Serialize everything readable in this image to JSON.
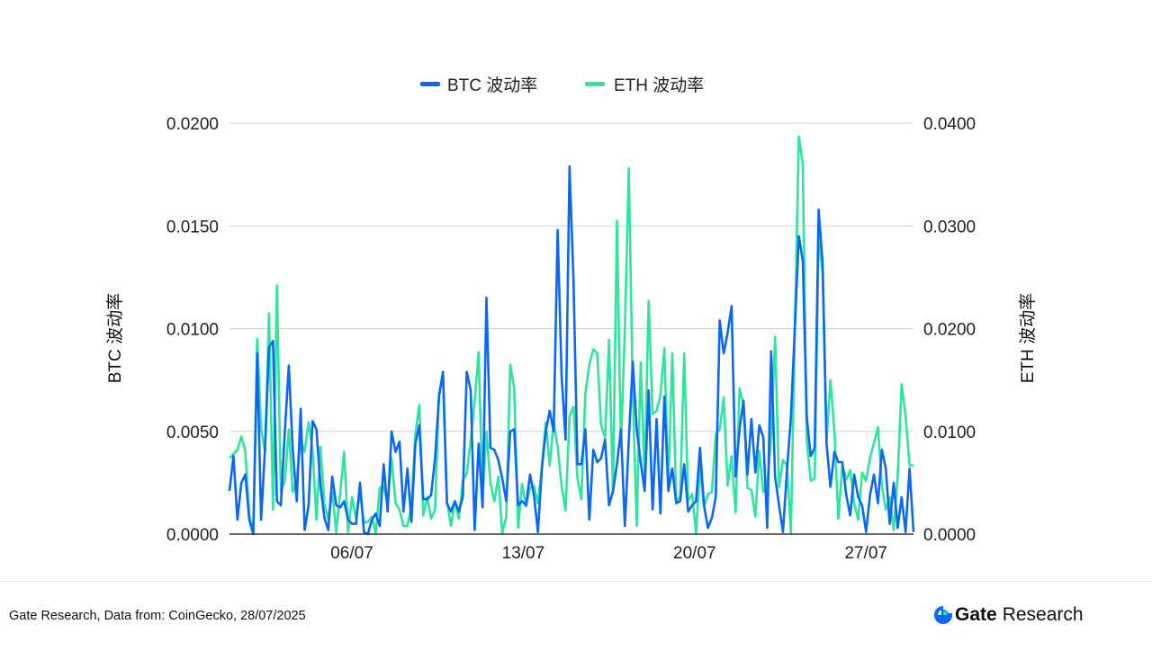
{
  "chart_data": {
    "type": "line",
    "legend": [
      "BTC 波动率",
      "ETH 波动率"
    ],
    "legend_position": "top-center",
    "ylabel_left": "BTC 波动率",
    "ylabel_right": "ETH 波动率",
    "ylim_left": [
      0,
      0.02
    ],
    "ylim_right": [
      0,
      0.04
    ],
    "yticks_left": [
      "0.0000",
      "0.0050",
      "0.0100",
      "0.0150",
      "0.0200"
    ],
    "yticks_right": [
      "0.0000",
      "0.0100",
      "0.0200",
      "0.0300",
      "0.0400"
    ],
    "x_unit": "days since 01/07/2025",
    "xlim": [
      0,
      27.94
    ],
    "xticks": [
      {
        "label": "06/07",
        "day": 5
      },
      {
        "label": "13/07",
        "day": 12
      },
      {
        "label": "20/07",
        "day": 19
      },
      {
        "label": "27/07",
        "day": 26
      }
    ],
    "grid": true,
    "colors": {
      "BTC": "#0a68f5",
      "ETH": "#2ee59d"
    },
    "series": [
      {
        "name": "BTC 波动率",
        "axis": "left",
        "values": [
          0.0021,
          0.0038,
          0.0007,
          0.0025,
          0.0029,
          0.0007,
          0.0,
          0.0088,
          0.0007,
          0.0042,
          0.0091,
          0.0094,
          0.0016,
          0.0014,
          0.005,
          0.0082,
          0.0041,
          0.0016,
          0.0061,
          0.0002,
          0.0014,
          0.0055,
          0.0051,
          0.0024,
          0.0008,
          0.0002,
          0.0028,
          0.0014,
          0.0013,
          0.0016,
          0.0007,
          0.0005,
          0.0005,
          0.0025,
          0.0001,
          0.0,
          0.0007,
          0.001,
          0.0004,
          0.0034,
          0.0011,
          0.005,
          0.004,
          0.0045,
          0.0011,
          0.0032,
          0.0006,
          0.0044,
          0.0053,
          0.0017,
          0.0017,
          0.0019,
          0.0037,
          0.0067,
          0.0079,
          0.0015,
          0.0011,
          0.0016,
          0.0011,
          0.0018,
          0.0079,
          0.007,
          0.0002,
          0.0044,
          0.0013,
          0.0115,
          0.0042,
          0.0041,
          0.0036,
          0.0027,
          0.0016,
          0.005,
          0.0051,
          0.0014,
          0.0016,
          0.0014,
          0.0029,
          0.0019,
          0.0001,
          0.0032,
          0.005,
          0.006,
          0.005,
          0.0148,
          0.0077,
          0.0046,
          0.0179,
          0.0124,
          0.0034,
          0.0034,
          0.0051,
          0.0007,
          0.0041,
          0.0035,
          0.0037,
          0.0046,
          0.0014,
          0.0021,
          0.0034,
          0.0051,
          0.0004,
          0.0046,
          0.0084,
          0.0051,
          0.0035,
          0.0021,
          0.007,
          0.0012,
          0.0056,
          0.001,
          0.0067,
          0.0021,
          0.0032,
          0.0015,
          0.0016,
          0.0034,
          0.0011,
          0.0014,
          0.0016,
          0.0042,
          0.0014,
          0.0003,
          0.0008,
          0.0018,
          0.0104,
          0.0088,
          0.0098,
          0.0111,
          0.0028,
          0.0051,
          0.0065,
          0.0029,
          0.0056,
          0.003,
          0.0053,
          0.0047,
          0.0003,
          0.0089,
          0.0028,
          0.0014,
          0.0001,
          0.0031,
          0.0057,
          0.0101,
          0.0145,
          0.0133,
          0.0057,
          0.0038,
          0.0042,
          0.0158,
          0.0132,
          0.0044,
          0.0023,
          0.004,
          0.0035,
          0.0035,
          0.0019,
          0.0009,
          0.0029,
          0.0018,
          0.0014,
          0.0001,
          0.0019,
          0.0029,
          0.0015,
          0.0041,
          0.0032,
          0.0005,
          0.0025,
          0.0003,
          0.0018,
          0.0001,
          0.0032,
          0.0001
        ]
      },
      {
        "name": "ETH 波动率",
        "axis": "right",
        "values": [
          0.0074,
          0.0078,
          0.0082,
          0.0095,
          0.0081,
          0.0018,
          0.0001,
          0.019,
          0.0102,
          0.008,
          0.0215,
          0.0024,
          0.0242,
          0.0041,
          0.0052,
          0.0102,
          0.0041,
          0.0054,
          0.0091,
          0.008,
          0.0109,
          0.0082,
          0.0014,
          0.0085,
          0.003,
          0.0014,
          0.0041,
          0.0002,
          0.004,
          0.008,
          0.0002,
          0.0036,
          0.0015,
          0.004,
          0.0011,
          0.0012,
          0.0017,
          0.0001,
          0.0045,
          0.0047,
          0.003,
          0.0074,
          0.003,
          0.0024,
          0.0008,
          0.0008,
          0.0027,
          0.0097,
          0.0126,
          0.0018,
          0.0036,
          0.0015,
          0.0024,
          0.0137,
          0.0155,
          0.0032,
          0.0008,
          0.0032,
          0.0015,
          0.0052,
          0.0059,
          0.0091,
          0.0129,
          0.0177,
          0.0034,
          0.01,
          0.005,
          0.0032,
          0.0056,
          0.0001,
          0.0017,
          0.0165,
          0.0142,
          0.0006,
          0.0049,
          0.0027,
          0.0045,
          0.0047,
          0.003,
          0.0065,
          0.0109,
          0.0067,
          0.0109,
          0.0085,
          0.0047,
          0.0023,
          0.0115,
          0.0124,
          0.0054,
          0.0034,
          0.0137,
          0.0165,
          0.018,
          0.0176,
          0.0106,
          0.0094,
          0.0189,
          0.004,
          0.0305,
          0.0085,
          0.0199,
          0.0356,
          0.0137,
          0.0008,
          0.0167,
          0.0056,
          0.0227,
          0.0117,
          0.012,
          0.0135,
          0.0181,
          0.0047,
          0.0176,
          0.003,
          0.0037,
          0.0176,
          0.0032,
          0.0039,
          0.0001,
          0.0065,
          0.0027,
          0.0039,
          0.0041,
          0.0097,
          0.0102,
          0.0133,
          0.0047,
          0.0076,
          0.0021,
          0.0142,
          0.0126,
          0.0045,
          0.0043,
          0.0017,
          0.0081,
          0.0041,
          0.0047,
          0.0094,
          0.0192,
          0.0046,
          0.0072,
          0.0067,
          0.0001,
          0.0202,
          0.0387,
          0.036,
          0.0091,
          0.0052,
          0.0054,
          0.0286,
          0.0255,
          0.0091,
          0.015,
          0.01,
          0.0015,
          0.0067,
          0.0053,
          0.0062,
          0.003,
          0.0014,
          0.006,
          0.0052,
          0.0074,
          0.0089,
          0.0104,
          0.0047,
          0.0024,
          0.0036,
          0.0004,
          0.0056,
          0.0146,
          0.0115,
          0.0067,
          0.0067
        ]
      }
    ]
  },
  "footer": {
    "source": "Gate Research, Data from: CoinGecko, 28/07/2025",
    "logo_brand": "Gate",
    "logo_suffix": "Research"
  }
}
